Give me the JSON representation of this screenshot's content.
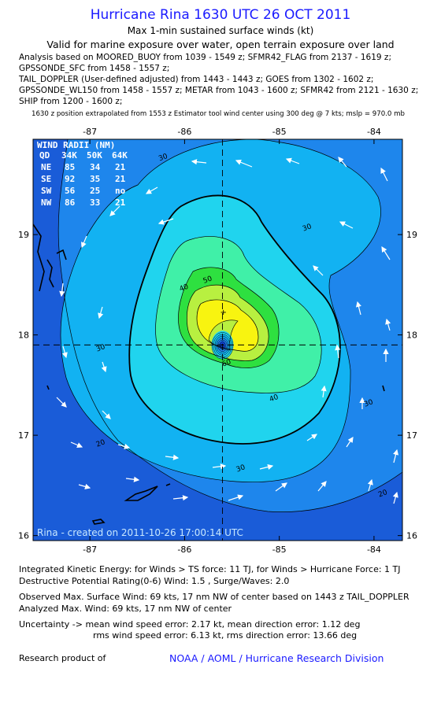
{
  "header": {
    "title": "Hurricane Rina 1630 UTC 26 OCT 2011",
    "subtitle1": "Max 1-min sustained surface winds (kt)",
    "subtitle2": "Valid for marine exposure over water, open terrain exposure over land",
    "analysis_lines": [
      "Analysis based on MOORED_BUOY from 1039 - 1549 z; SFMR42_FLAG from 2137 - 1619 z;",
      "GPSSONDE_SFC from 1458 - 1557 z;",
      "TAIL_DOPPLER (User-defined adjusted) from 1443 - 1443 z; GOES from 1302 - 1602 z;",
      "GPSSONDE_WL150 from 1458 - 1557 z; METAR from 1043 - 1600 z; SFMR42 from 2121 - 1630 z;",
      "SHIP from 1200 - 1600 z;"
    ],
    "position_note": "1630 z position extrapolated from 1553 z Estimator tool wind center using 300 deg @ 7 kts; mslp = 970.0 mb"
  },
  "chart_data": {
    "type": "contour",
    "xlim": [
      -87.6,
      -83.7
    ],
    "ylim": [
      15.95,
      19.95
    ],
    "x_ticks": [
      -87,
      -86,
      -85,
      -84
    ],
    "y_ticks": [
      16,
      17,
      18,
      19
    ],
    "x_tick_labels": [
      "-87",
      "-86",
      "-85",
      "-84"
    ],
    "y_tick_labels": [
      "16",
      "17",
      "18",
      "19"
    ],
    "center": {
      "lon": -85.6,
      "lat": 17.9
    },
    "contour_labels": [
      {
        "text": "30",
        "lon": -86.22,
        "lat": 19.75
      },
      {
        "text": "30",
        "lon": -84.7,
        "lat": 19.05
      },
      {
        "text": "30",
        "lon": -86.88,
        "lat": 17.85
      },
      {
        "text": "30",
        "lon": -84.05,
        "lat": 17.3
      },
      {
        "text": "30",
        "lon": -85.4,
        "lat": 16.65
      },
      {
        "text": "20",
        "lon": -86.88,
        "lat": 16.9
      },
      {
        "text": "20",
        "lon": -83.9,
        "lat": 16.4
      },
      {
        "text": "40",
        "lon": -86.0,
        "lat": 18.45
      },
      {
        "text": "40",
        "lon": -85.05,
        "lat": 17.35
      },
      {
        "text": "50",
        "lon": -85.75,
        "lat": 18.53
      },
      {
        "text": "60",
        "lon": -85.55,
        "lat": 17.7
      }
    ],
    "wind_radii": {
      "title": "WIND RADII (NM)",
      "header": [
        "QD",
        "34K",
        "50K",
        "64K"
      ],
      "rows": [
        [
          "NE",
          "85",
          "34",
          "21"
        ],
        [
          "SE",
          "92",
          "35",
          "21"
        ],
        [
          "SW",
          "56",
          "25",
          "no"
        ],
        [
          "NW",
          "86",
          "33",
          "21"
        ]
      ]
    },
    "credit": "Rina - created on 2011-10-26 17:00:14 UTC",
    "colors": {
      "bg": "#1a5cd8",
      "level20": "#1e86ec",
      "level30": "#12b2f2",
      "level40": "#20d4ee",
      "level50": "#40f0a8",
      "level60": "#2ee040",
      "level65": "#b8f040",
      "level68": "#f8f410",
      "eye": "#1044d8"
    }
  },
  "footer": {
    "ike": "Integrated Kinetic Energy:  for Winds > TS force: 11 TJ,  for Winds > Hurricane Force: 1 TJ",
    "dpr": "Destructive Potential Rating(0-6)   Wind: 1.5 , Surge/Waves: 2.0",
    "obs_max": "Observed Max. Surface Wind: 69 kts, 17 nm NW of center based on 1443 z TAIL_DOPPLER",
    "analyzed_max": "Analyzed Max. Wind: 69 kts, 17 nm NW of center",
    "uncertainty1": "Uncertainty -> mean wind speed error: 2.17 kt,   mean direction error: 1.12 deg",
    "uncertainty2": "rms wind speed error: 6.13 kt,   rms direction error: 13.66 deg",
    "research_label": "Research product of",
    "org": "NOAA / AOML / Hurricane Research Division"
  }
}
